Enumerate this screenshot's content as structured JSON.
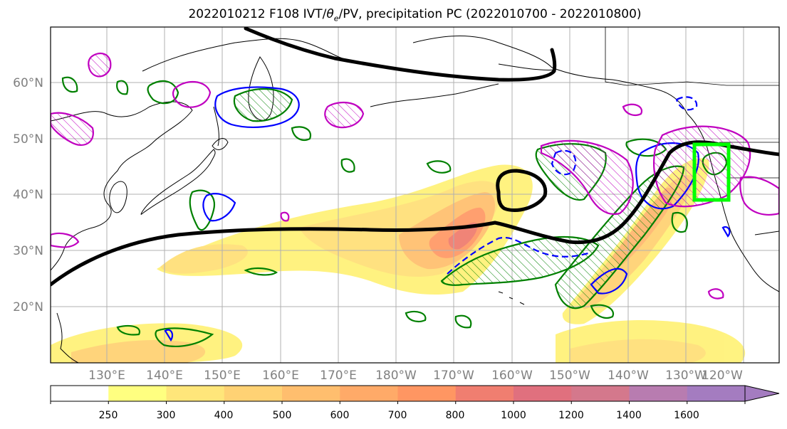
{
  "figure": {
    "title_main": "2022010212 F108 IVT/",
    "title_theta": "θ",
    "title_sub_e": "e",
    "title_rest": "/PV, precipitation PC (2022010700 - 2022010800)"
  },
  "map": {
    "lat_labels": [
      "60°N",
      "50°N",
      "40°N",
      "30°N",
      "20°N"
    ],
    "lon_labels": [
      "130°E",
      "140°E",
      "150°E",
      "160°E",
      "170°E",
      "180°W",
      "170°W",
      "160°W",
      "150°W",
      "140°W",
      "130°W",
      "120°W"
    ],
    "gridlines": true,
    "contour_colors": {
      "theta_e": "#000000",
      "pv_positive": "#008000",
      "pv_negative": "#0000ff",
      "precip_pc": "#c000c0",
      "target_box": "#00ff00"
    }
  },
  "colorbar": {
    "ticks": [
      "250",
      "300",
      "400",
      "500",
      "600",
      "700",
      "800",
      "1000",
      "1200",
      "1400",
      "1600"
    ],
    "colors": [
      "#ffffff",
      "#ffff80",
      "#ffe67a",
      "#ffd274",
      "#ffbe6e",
      "#ffaa68",
      "#ff9662",
      "#f07e70",
      "#e0707e",
      "#d4788c",
      "#b87cb0",
      "#a47cc0"
    ]
  }
}
